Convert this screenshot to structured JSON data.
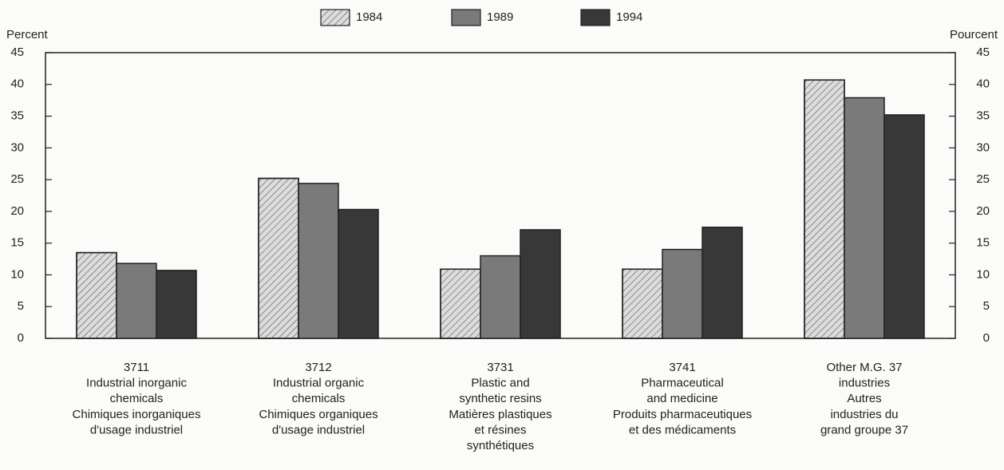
{
  "chart_data": {
    "type": "bar",
    "y_label": "Percent",
    "y2_label": "Pourcent",
    "categories": [
      [
        "3711",
        "Industrial inorganic",
        "chemicals",
        "Chimiques inorganiques",
        "d'usage industriel"
      ],
      [
        "3712",
        "Industrial organic",
        "chemicals",
        "Chimiques organiques",
        "d'usage industriel"
      ],
      [
        "3731",
        "Plastic and",
        "synthetic resins",
        "Matières plastiques",
        "et résines",
        "synthétiques"
      ],
      [
        "3741",
        "Pharmaceutical",
        "and medicine",
        "Produits pharmaceutiques",
        "et des médicaments"
      ],
      [
        "Other M.G. 37",
        "industries",
        "Autres",
        "industries du",
        "grand groupe 37"
      ]
    ],
    "series": [
      {
        "name": "1984",
        "color": "#dcdcdc",
        "pattern": "hatch",
        "values": [
          13.5,
          25.2,
          10.9,
          10.9,
          40.7
        ]
      },
      {
        "name": "1989",
        "color": "#7a7a7a",
        "values": [
          11.8,
          24.4,
          13.0,
          14.0,
          37.9
        ]
      },
      {
        "name": "1994",
        "color": "#383838",
        "values": [
          10.7,
          20.3,
          17.1,
          17.5,
          35.2
        ]
      }
    ],
    "ylim": [
      0,
      45
    ],
    "yticks": [
      0,
      5,
      10,
      15,
      20,
      25,
      30,
      35,
      40,
      45
    ],
    "y2lim": [
      0,
      45
    ],
    "y2ticks": [
      0,
      5,
      10,
      15,
      20,
      25,
      30,
      35,
      40,
      45
    ],
    "legend": "top"
  }
}
